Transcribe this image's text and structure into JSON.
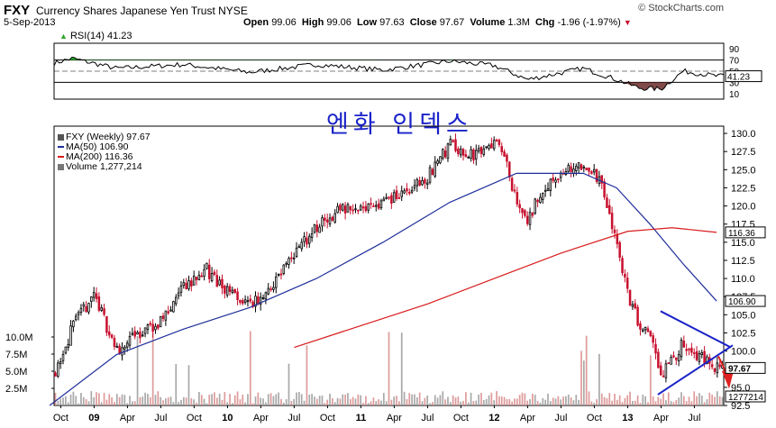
{
  "header": {
    "symbol": "FXY",
    "name": "Currency Shares Japanese Yen Trust",
    "exchange": "NYSE",
    "date": "5-Sep-2013",
    "open_label": "Open",
    "open": "99.06",
    "high_label": "High",
    "high": "99.06",
    "low_label": "Low",
    "low": "97.63",
    "close_label": "Close",
    "close": "97.67",
    "volume_label": "Volume",
    "volume": "1.3M",
    "chg_label": "Chg",
    "chg": "-1.96 (-1.97%)",
    "brand": "© StockCharts.com"
  },
  "annotation": "엔화 인덱스",
  "colors": {
    "up": "#000000",
    "down": "#c8102e",
    "ma50": "#1f2f9a",
    "ma200": "#d81b1b",
    "rsi_fill": "#2ea82e",
    "rsi_low_fill": "#6b2a2a",
    "annotation": "#1a22c8"
  },
  "rsi_panel": {
    "label": "RSI(14)",
    "value": "41.23",
    "axis_ticks": [
      "90",
      "70",
      "50",
      "30",
      "10"
    ],
    "last_tag": "41.23"
  },
  "price_panel": {
    "legend": [
      {
        "text": "FXY (Weekly) 97.67",
        "color": "#555555",
        "icon": "candle-icon"
      },
      {
        "text": "MA(50) 106.90",
        "color": "#1f2f9a"
      },
      {
        "text": "MA(200) 116.36",
        "color": "#d81b1b"
      },
      {
        "text": "Volume 1,277,214",
        "color": "#777777",
        "icon": "volume-icon"
      }
    ],
    "y_ticks": [
      "130.0",
      "127.5",
      "125.0",
      "122.5",
      "120.0",
      "117.5",
      "115.0",
      "112.5",
      "110.0",
      "107.5",
      "105.0",
      "102.5",
      "100.0",
      "97.5",
      "95.0",
      "92.5"
    ],
    "volume_ticks": [
      "10.0M",
      "7.5M",
      "5.0M",
      "2.5M"
    ],
    "tags": {
      "ma200": "116.36",
      "ma50": "106.90",
      "close": "97.67",
      "volume": "1277214"
    }
  },
  "x_axis": [
    "Oct",
    "09",
    "Apr",
    "Jul",
    "Oct",
    "10",
    "Apr",
    "Jul",
    "Oct",
    "11",
    "Apr",
    "Jul",
    "Oct",
    "12",
    "Apr",
    "Jul",
    "Oct",
    "13",
    "Apr",
    "Jul"
  ],
  "chart_data": {
    "type": "candlestick",
    "period": "weekly",
    "y_range": [
      92.5,
      131.0
    ],
    "price_anchors": [
      {
        "x": "2008-09",
        "close": 95.5
      },
      {
        "x": "2008-11",
        "close": 103.0
      },
      {
        "x": "2009-01",
        "close": 108.0
      },
      {
        "x": "2009-03",
        "close": 100.0
      },
      {
        "x": "2009-05",
        "close": 102.5
      },
      {
        "x": "2009-07",
        "close": 104.0
      },
      {
        "x": "2009-09",
        "close": 108.5
      },
      {
        "x": "2009-11",
        "close": 111.5
      },
      {
        "x": "2010-01",
        "close": 108.0
      },
      {
        "x": "2010-03",
        "close": 106.0
      },
      {
        "x": "2010-05",
        "close": 109.0
      },
      {
        "x": "2010-07",
        "close": 113.5
      },
      {
        "x": "2010-09",
        "close": 117.0
      },
      {
        "x": "2010-11",
        "close": 119.5
      },
      {
        "x": "2011-01",
        "close": 120.0
      },
      {
        "x": "2011-03",
        "close": 120.5
      },
      {
        "x": "2011-05",
        "close": 122.0
      },
      {
        "x": "2011-07",
        "close": 124.0
      },
      {
        "x": "2011-09",
        "close": 128.5
      },
      {
        "x": "2011-11",
        "close": 127.0
      },
      {
        "x": "2012-01",
        "close": 129.0
      },
      {
        "x": "2012-02",
        "close": 127.0
      },
      {
        "x": "2012-03",
        "close": 120.0
      },
      {
        "x": "2012-04",
        "close": 117.5
      },
      {
        "x": "2012-05",
        "close": 121.5
      },
      {
        "x": "2012-07",
        "close": 124.5
      },
      {
        "x": "2012-09",
        "close": 125.5
      },
      {
        "x": "2012-10",
        "close": 125.0
      },
      {
        "x": "2012-11",
        "close": 121.0
      },
      {
        "x": "2012-12",
        "close": 115.0
      },
      {
        "x": "2013-01",
        "close": 108.0
      },
      {
        "x": "2013-02",
        "close": 104.0
      },
      {
        "x": "2013-03",
        "close": 102.0
      },
      {
        "x": "2013-04",
        "close": 96.5
      },
      {
        "x": "2013-05",
        "close": 98.5
      },
      {
        "x": "2013-06",
        "close": 101.5
      },
      {
        "x": "2013-07",
        "close": 99.5
      },
      {
        "x": "2013-08",
        "close": 99.0
      },
      {
        "x": "2013-09",
        "close": 97.67
      }
    ],
    "ma50": [
      {
        "x": "2008-09",
        "y": 89.5
      },
      {
        "x": "2009-03",
        "y": 99.5
      },
      {
        "x": "2009-09",
        "y": 103.0
      },
      {
        "x": "2010-03",
        "y": 106.0
      },
      {
        "x": "2010-09",
        "y": 110.0
      },
      {
        "x": "2011-03",
        "y": 115.0
      },
      {
        "x": "2011-09",
        "y": 120.5
      },
      {
        "x": "2012-03",
        "y": 124.5
      },
      {
        "x": "2012-09",
        "y": 124.5
      },
      {
        "x": "2012-12",
        "y": 122.5
      },
      {
        "x": "2013-03",
        "y": 117.5
      },
      {
        "x": "2013-06",
        "y": 112.0
      },
      {
        "x": "2013-09",
        "y": 106.9
      }
    ],
    "ma200": [
      {
        "x": "2010-07",
        "y": 100.5
      },
      {
        "x": "2011-01",
        "y": 103.5
      },
      {
        "x": "2011-07",
        "y": 106.5
      },
      {
        "x": "2012-01",
        "y": 110.0
      },
      {
        "x": "2012-07",
        "y": 113.5
      },
      {
        "x": "2013-01",
        "y": 116.5
      },
      {
        "x": "2013-05",
        "y": 117.0
      },
      {
        "x": "2013-09",
        "y": 116.36
      }
    ],
    "rsi_anchors": [
      {
        "x": "2008-09",
        "y": 62
      },
      {
        "x": "2008-11",
        "y": 73
      },
      {
        "x": "2009-03",
        "y": 55
      },
      {
        "x": "2009-09",
        "y": 62
      },
      {
        "x": "2010-03",
        "y": 48
      },
      {
        "x": "2010-09",
        "y": 62
      },
      {
        "x": "2011-03",
        "y": 52
      },
      {
        "x": "2011-09",
        "y": 68
      },
      {
        "x": "2012-01",
        "y": 60
      },
      {
        "x": "2012-04",
        "y": 35
      },
      {
        "x": "2012-09",
        "y": 55
      },
      {
        "x": "2012-12",
        "y": 35
      },
      {
        "x": "2013-02",
        "y": 20
      },
      {
        "x": "2013-04",
        "y": 18
      },
      {
        "x": "2013-06",
        "y": 50
      },
      {
        "x": "2013-09",
        "y": 41.23
      }
    ],
    "rsi_range": [
      0,
      100
    ],
    "annotations": [
      "triangle-pattern",
      "down-arrow"
    ]
  }
}
